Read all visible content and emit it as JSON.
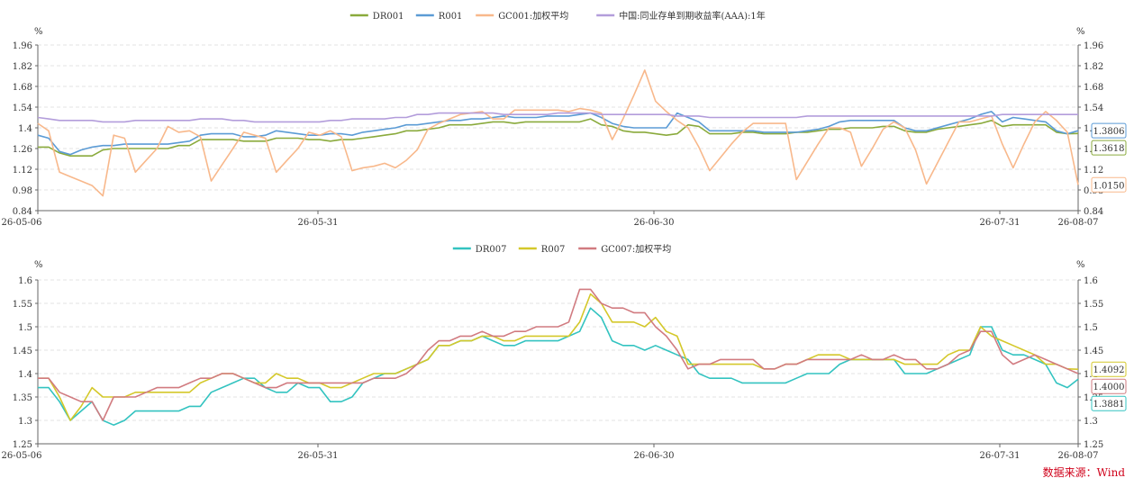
{
  "source_label": "数据来源：Wind",
  "x_ticks": [
    "26-05-06",
    "26-05-31",
    "26-06-30",
    "26-07-31",
    "26-08-07"
  ],
  "chart_data": [
    {
      "type": "line",
      "unit": "%",
      "legend_position": "top-center",
      "ylim": [
        0.84,
        1.96
      ],
      "y_ticks": [
        0.84,
        0.98,
        1.12,
        1.26,
        1.4,
        1.54,
        1.68,
        1.82,
        1.96
      ],
      "grid": true,
      "series": [
        {
          "name": "DR001",
          "color": "#8aaa3c",
          "end_label": "1.3618",
          "values": [
            1.27,
            1.27,
            1.23,
            1.21,
            1.21,
            1.21,
            1.25,
            1.26,
            1.26,
            1.26,
            1.26,
            1.26,
            1.26,
            1.28,
            1.28,
            1.32,
            1.32,
            1.32,
            1.32,
            1.31,
            1.31,
            1.31,
            1.33,
            1.33,
            1.33,
            1.32,
            1.32,
            1.31,
            1.32,
            1.32,
            1.33,
            1.34,
            1.35,
            1.36,
            1.38,
            1.38,
            1.39,
            1.4,
            1.42,
            1.42,
            1.42,
            1.43,
            1.44,
            1.44,
            1.43,
            1.44,
            1.44,
            1.44,
            1.44,
            1.44,
            1.44,
            1.46,
            1.42,
            1.41,
            1.38,
            1.37,
            1.37,
            1.36,
            1.35,
            1.36,
            1.42,
            1.41,
            1.36,
            1.36,
            1.36,
            1.37,
            1.37,
            1.36,
            1.36,
            1.36,
            1.37,
            1.37,
            1.38,
            1.39,
            1.39,
            1.4,
            1.4,
            1.4,
            1.41,
            1.41,
            1.38,
            1.37,
            1.37,
            1.39,
            1.4,
            1.41,
            1.42,
            1.43,
            1.45,
            1.41,
            1.42,
            1.42,
            1.42,
            1.42,
            1.37,
            1.36,
            1.3618
          ]
        },
        {
          "name": "R001",
          "color": "#5b9bd5",
          "end_label": "1.3806",
          "values": [
            1.35,
            1.33,
            1.24,
            1.22,
            1.25,
            1.27,
            1.28,
            1.28,
            1.29,
            1.29,
            1.29,
            1.29,
            1.29,
            1.3,
            1.31,
            1.35,
            1.36,
            1.36,
            1.36,
            1.34,
            1.34,
            1.35,
            1.38,
            1.37,
            1.36,
            1.35,
            1.35,
            1.36,
            1.36,
            1.35,
            1.37,
            1.38,
            1.39,
            1.4,
            1.42,
            1.42,
            1.43,
            1.44,
            1.45,
            1.45,
            1.46,
            1.46,
            1.47,
            1.48,
            1.47,
            1.47,
            1.47,
            1.48,
            1.48,
            1.48,
            1.49,
            1.5,
            1.47,
            1.43,
            1.41,
            1.4,
            1.4,
            1.4,
            1.4,
            1.5,
            1.47,
            1.44,
            1.38,
            1.38,
            1.38,
            1.38,
            1.38,
            1.37,
            1.37,
            1.37,
            1.37,
            1.38,
            1.39,
            1.41,
            1.44,
            1.45,
            1.45,
            1.45,
            1.45,
            1.45,
            1.4,
            1.38,
            1.38,
            1.4,
            1.42,
            1.44,
            1.46,
            1.49,
            1.51,
            1.44,
            1.47,
            1.46,
            1.45,
            1.44,
            1.38,
            1.36,
            1.3806
          ]
        },
        {
          "name": "GC001:加权平均",
          "color": "#f8b88b",
          "end_label": "1.0150",
          "values": [
            1.43,
            1.38,
            1.1,
            1.07,
            1.04,
            1.01,
            0.94,
            1.35,
            1.33,
            1.1,
            1.18,
            1.26,
            1.41,
            1.37,
            1.38,
            1.34,
            1.04,
            1.15,
            1.26,
            1.37,
            1.35,
            1.33,
            1.1,
            1.18,
            1.26,
            1.37,
            1.35,
            1.38,
            1.34,
            1.11,
            1.13,
            1.14,
            1.16,
            1.13,
            1.18,
            1.25,
            1.39,
            1.43,
            1.46,
            1.49,
            1.5,
            1.51,
            1.46,
            1.46,
            1.52,
            1.52,
            1.52,
            1.52,
            1.52,
            1.51,
            1.53,
            1.52,
            1.5,
            1.32,
            1.46,
            1.62,
            1.79,
            1.58,
            1.51,
            1.45,
            1.4,
            1.27,
            1.11,
            1.2,
            1.29,
            1.37,
            1.43,
            1.43,
            1.43,
            1.43,
            1.05,
            1.17,
            1.29,
            1.4,
            1.4,
            1.37,
            1.14,
            1.26,
            1.39,
            1.44,
            1.4,
            1.25,
            1.02,
            1.16,
            1.3,
            1.44,
            1.44,
            1.46,
            1.48,
            1.29,
            1.13,
            1.29,
            1.44,
            1.51,
            1.45,
            1.37,
            1.015
          ]
        },
        {
          "name": "中国:同业存单到期收益率(AAA):1年",
          "color": "#b39ddb",
          "end_label": "",
          "values": [
            1.47,
            1.46,
            1.45,
            1.45,
            1.45,
            1.45,
            1.44,
            1.44,
            1.44,
            1.45,
            1.45,
            1.45,
            1.45,
            1.45,
            1.45,
            1.46,
            1.46,
            1.46,
            1.45,
            1.45,
            1.44,
            1.44,
            1.44,
            1.44,
            1.44,
            1.44,
            1.44,
            1.45,
            1.45,
            1.46,
            1.46,
            1.46,
            1.46,
            1.47,
            1.47,
            1.49,
            1.49,
            1.5,
            1.5,
            1.5,
            1.5,
            1.5,
            1.5,
            1.49,
            1.49,
            1.49,
            1.49,
            1.49,
            1.5,
            1.5,
            1.5,
            1.5,
            1.49,
            1.49,
            1.49,
            1.49,
            1.49,
            1.49,
            1.49,
            1.48,
            1.48,
            1.48,
            1.47,
            1.47,
            1.47,
            1.47,
            1.47,
            1.47,
            1.47,
            1.47,
            1.47,
            1.48,
            1.48,
            1.48,
            1.48,
            1.48,
            1.48,
            1.48,
            1.48,
            1.48,
            1.48,
            1.48,
            1.48,
            1.48,
            1.48,
            1.48,
            1.48,
            1.48,
            1.48,
            1.49,
            1.49,
            1.49,
            1.49,
            1.49,
            1.49,
            1.49,
            1.49
          ]
        }
      ]
    },
    {
      "type": "line",
      "unit": "%",
      "legend_position": "top-center",
      "ylim": [
        1.25,
        1.6
      ],
      "y_ticks": [
        1.25,
        1.3,
        1.35,
        1.4,
        1.45,
        1.5,
        1.55,
        1.6
      ],
      "grid": true,
      "series": [
        {
          "name": "DR007",
          "color": "#33c3c0",
          "end_label": "1.3881",
          "values": [
            1.37,
            1.37,
            1.34,
            1.3,
            1.32,
            1.34,
            1.3,
            1.29,
            1.3,
            1.32,
            1.32,
            1.32,
            1.32,
            1.32,
            1.33,
            1.33,
            1.36,
            1.37,
            1.38,
            1.39,
            1.39,
            1.37,
            1.36,
            1.36,
            1.38,
            1.37,
            1.37,
            1.34,
            1.34,
            1.35,
            1.38,
            1.39,
            1.4,
            1.4,
            1.41,
            1.42,
            1.43,
            1.46,
            1.46,
            1.47,
            1.47,
            1.48,
            1.47,
            1.46,
            1.46,
            1.47,
            1.47,
            1.47,
            1.47,
            1.48,
            1.49,
            1.54,
            1.52,
            1.47,
            1.46,
            1.46,
            1.45,
            1.46,
            1.45,
            1.44,
            1.43,
            1.4,
            1.39,
            1.39,
            1.39,
            1.38,
            1.38,
            1.38,
            1.38,
            1.38,
            1.39,
            1.4,
            1.4,
            1.4,
            1.42,
            1.43,
            1.43,
            1.43,
            1.43,
            1.43,
            1.4,
            1.4,
            1.4,
            1.41,
            1.42,
            1.43,
            1.44,
            1.5,
            1.5,
            1.45,
            1.44,
            1.44,
            1.43,
            1.42,
            1.38,
            1.37,
            1.3881
          ]
        },
        {
          "name": "R007",
          "color": "#d4c82a",
          "end_label": "1.4092",
          "values": [
            1.39,
            1.39,
            1.35,
            1.3,
            1.33,
            1.37,
            1.35,
            1.35,
            1.35,
            1.36,
            1.36,
            1.36,
            1.36,
            1.36,
            1.36,
            1.38,
            1.39,
            1.4,
            1.4,
            1.39,
            1.38,
            1.38,
            1.4,
            1.39,
            1.39,
            1.38,
            1.38,
            1.37,
            1.37,
            1.38,
            1.39,
            1.4,
            1.4,
            1.4,
            1.41,
            1.42,
            1.43,
            1.46,
            1.46,
            1.47,
            1.47,
            1.48,
            1.48,
            1.47,
            1.47,
            1.48,
            1.48,
            1.48,
            1.48,
            1.48,
            1.51,
            1.57,
            1.55,
            1.51,
            1.51,
            1.51,
            1.5,
            1.52,
            1.49,
            1.48,
            1.42,
            1.42,
            1.42,
            1.42,
            1.42,
            1.42,
            1.42,
            1.41,
            1.41,
            1.42,
            1.42,
            1.43,
            1.44,
            1.44,
            1.44,
            1.43,
            1.43,
            1.43,
            1.43,
            1.43,
            1.42,
            1.42,
            1.42,
            1.42,
            1.44,
            1.45,
            1.45,
            1.5,
            1.48,
            1.47,
            1.46,
            1.45,
            1.44,
            1.42,
            1.42,
            1.41,
            1.4092
          ]
        },
        {
          "name": "GC007:加权平均",
          "color": "#d17b80",
          "end_label": "1.4000",
          "values": [
            1.39,
            1.39,
            1.36,
            1.35,
            1.34,
            1.34,
            1.3,
            1.35,
            1.35,
            1.35,
            1.36,
            1.37,
            1.37,
            1.37,
            1.38,
            1.39,
            1.39,
            1.4,
            1.4,
            1.39,
            1.38,
            1.37,
            1.37,
            1.38,
            1.38,
            1.38,
            1.38,
            1.38,
            1.38,
            1.38,
            1.38,
            1.39,
            1.39,
            1.39,
            1.4,
            1.42,
            1.45,
            1.47,
            1.47,
            1.48,
            1.48,
            1.49,
            1.48,
            1.48,
            1.49,
            1.49,
            1.5,
            1.5,
            1.5,
            1.51,
            1.58,
            1.58,
            1.55,
            1.54,
            1.54,
            1.53,
            1.53,
            1.5,
            1.48,
            1.45,
            1.41,
            1.42,
            1.42,
            1.43,
            1.43,
            1.43,
            1.43,
            1.41,
            1.41,
            1.42,
            1.42,
            1.43,
            1.43,
            1.43,
            1.43,
            1.43,
            1.44,
            1.43,
            1.43,
            1.44,
            1.43,
            1.43,
            1.41,
            1.41,
            1.42,
            1.44,
            1.45,
            1.49,
            1.49,
            1.44,
            1.42,
            1.43,
            1.44,
            1.43,
            1.42,
            1.41,
            1.4
          ]
        }
      ]
    }
  ]
}
